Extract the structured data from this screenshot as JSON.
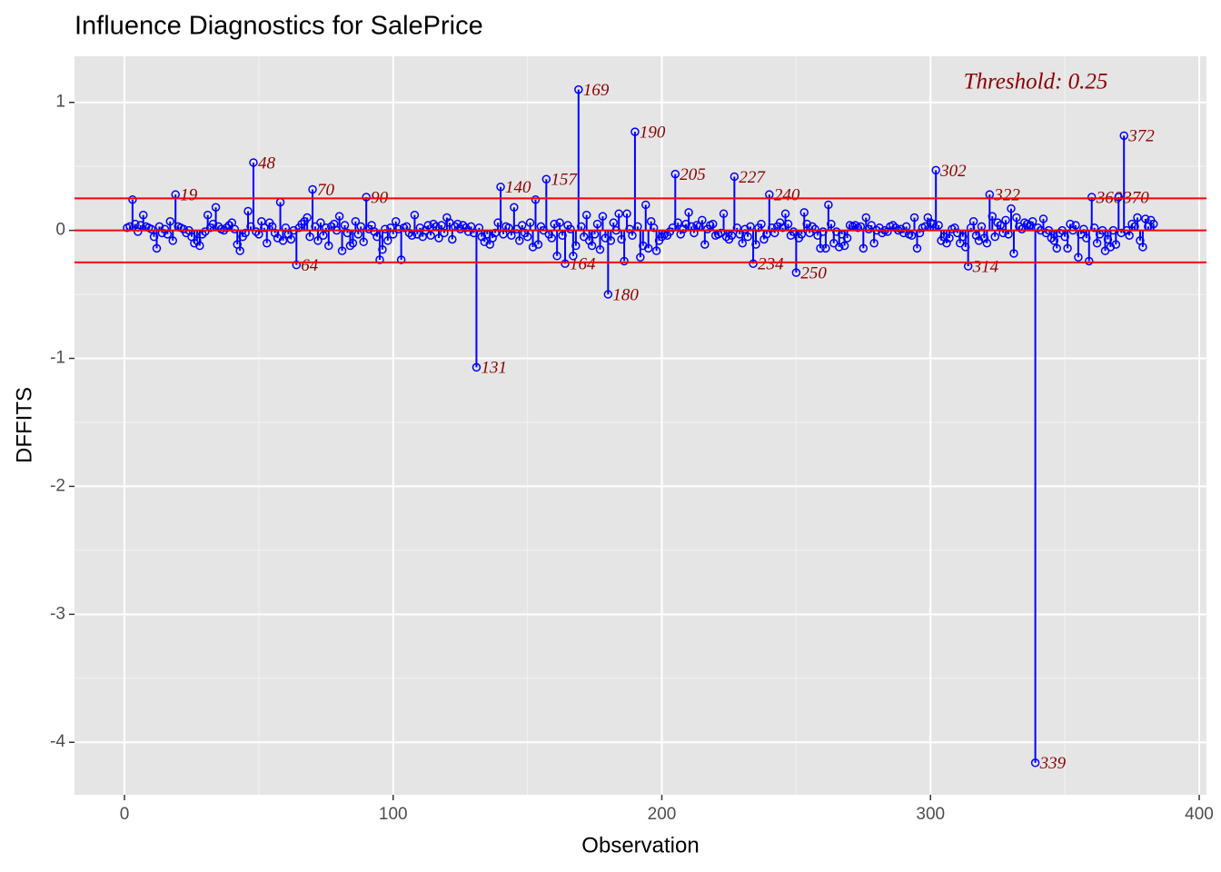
{
  "chart_data": {
    "type": "lollipop",
    "title": "Influence Diagnostics for SalePrice",
    "x_label": "Observation",
    "y_label": "DFFITS",
    "annotation": "Threshold: 0.25",
    "threshold": 0.25,
    "color": "#0000ff",
    "threshold_color": "#ff0000",
    "label_color": "#8b0000",
    "xlim": [
      -18.6,
      402.7
    ],
    "ylim": [
      -4.41,
      1.36
    ],
    "xticks": [
      0,
      100,
      200,
      300,
      400
    ],
    "yticks": [
      -4,
      -3,
      -2,
      -1,
      0,
      1
    ],
    "xminor": [
      50,
      150,
      250,
      350
    ],
    "yminor": [
      -3.5,
      -2.5,
      -1.5,
      -0.5,
      0.5
    ],
    "grid": true,
    "x": [
      1,
      2,
      3,
      4,
      5,
      6,
      7,
      8,
      9,
      10,
      11,
      12,
      13,
      14,
      15,
      16,
      17,
      18,
      19,
      20,
      21,
      22,
      23,
      24,
      25,
      26,
      27,
      28,
      29,
      30,
      31,
      32,
      33,
      34,
      35,
      36,
      37,
      38,
      39,
      40,
      41,
      42,
      43,
      44,
      45,
      46,
      47,
      48,
      49,
      50,
      51,
      52,
      53,
      54,
      55,
      56,
      57,
      58,
      59,
      60,
      61,
      62,
      63,
      64,
      65,
      66,
      67,
      68,
      69,
      70,
      71,
      72,
      73,
      74,
      75,
      76,
      77,
      78,
      79,
      80,
      81,
      82,
      83,
      84,
      85,
      86,
      87,
      88,
      89,
      90,
      91,
      92,
      93,
      94,
      95,
      96,
      97,
      98,
      99,
      100,
      101,
      102,
      103,
      104,
      105,
      106,
      107,
      108,
      109,
      110,
      111,
      112,
      113,
      114,
      115,
      116,
      117,
      118,
      119,
      120,
      121,
      122,
      123,
      124,
      125,
      126,
      127,
      128,
      129,
      130,
      131,
      132,
      133,
      134,
      135,
      136,
      137,
      138,
      139,
      140,
      141,
      142,
      143,
      144,
      145,
      146,
      147,
      148,
      149,
      150,
      151,
      152,
      153,
      154,
      155,
      156,
      157,
      158,
      159,
      160,
      161,
      162,
      163,
      164,
      165,
      166,
      167,
      168,
      169,
      170,
      171,
      172,
      173,
      174,
      175,
      176,
      177,
      178,
      179,
      180,
      181,
      182,
      183,
      184,
      185,
      186,
      187,
      188,
      189,
      190,
      191,
      192,
      193,
      194,
      195,
      196,
      197,
      198,
      199,
      200,
      201,
      202,
      203,
      204,
      205,
      206,
      207,
      208,
      209,
      210,
      211,
      212,
      213,
      214,
      215,
      216,
      217,
      218,
      219,
      220,
      221,
      222,
      223,
      224,
      225,
      226,
      227,
      228,
      229,
      230,
      231,
      232,
      233,
      234,
      235,
      236,
      237,
      238,
      239,
      240,
      241,
      242,
      243,
      244,
      245,
      246,
      247,
      248,
      249,
      250,
      251,
      252,
      253,
      254,
      255,
      256,
      257,
      258,
      259,
      260,
      261,
      262,
      263,
      264,
      265,
      266,
      267,
      268,
      269,
      270,
      271,
      272,
      273,
      274,
      275,
      276,
      277,
      278,
      279,
      280,
      281,
      282,
      283,
      284,
      285,
      286,
      287,
      288,
      289,
      290,
      291,
      292,
      293,
      294,
      295,
      296,
      297,
      298,
      299,
      300,
      301,
      302,
      303,
      304,
      305,
      306,
      307,
      308,
      309,
      310,
      311,
      312,
      313,
      314,
      315,
      316,
      317,
      318,
      319,
      320,
      321,
      322,
      323,
      324,
      325,
      326,
      327,
      328,
      329,
      330,
      331,
      332,
      333,
      334,
      335,
      336,
      337,
      338,
      339,
      340,
      341,
      342,
      343,
      344,
      345,
      346,
      347,
      348,
      349,
      350,
      351,
      352,
      353,
      354,
      355,
      356,
      357,
      358,
      359,
      360,
      361,
      362,
      363,
      364,
      365,
      366,
      367,
      368,
      369,
      370,
      371,
      372,
      373,
      374,
      375,
      376,
      377,
      378,
      379,
      380,
      381,
      382,
      383
    ],
    "values": [
      0.02,
      0.03,
      0.24,
      0.05,
      -0.01,
      0.04,
      0.12,
      0.03,
      0.02,
      0.01,
      -0.05,
      -0.14,
      0.03,
      -0.02,
      0.01,
      -0.03,
      0.07,
      -0.08,
      0.28,
      0.03,
      0.02,
      0.01,
      -0.02,
      0,
      -0.05,
      -0.1,
      -0.08,
      -0.12,
      -0.03,
      -0.01,
      0.12,
      0.02,
      0.05,
      0.18,
      0.03,
      0.01,
      0,
      0.02,
      0.04,
      0.06,
      0.01,
      -0.11,
      -0.16,
      -0.05,
      -0.02,
      0.15,
      0.03,
      0.53,
      -0.01,
      -0.03,
      0.07,
      0.02,
      -0.1,
      0.06,
      0.03,
      -0.02,
      -0.06,
      0.22,
      -0.08,
      0.02,
      -0.03,
      -0.07,
      0,
      -0.27,
      0.02,
      0.05,
      0.07,
      0.1,
      -0.05,
      0.32,
      0.03,
      -0.08,
      0.06,
      -0.04,
      0.02,
      -0.12,
      0.03,
      0.05,
      0,
      0.11,
      -0.16,
      0.04,
      -0.02,
      -0.12,
      -0.1,
      0.07,
      -0.03,
      0.03,
      -0.09,
      0.26,
      0.01,
      0.04,
      -0.01,
      -0.05,
      -0.23,
      -0.15,
      0.01,
      -0.08,
      0.02,
      -0.03,
      0.07,
      0.01,
      -0.23,
      0.02,
      0.03,
      -0.02,
      -0.04,
      0.12,
      -0.03,
      0.02,
      -0.05,
      0,
      0.04,
      -0.04,
      0.05,
      0.03,
      -0.06,
      0.04,
      -0.02,
      0.1,
      0.06,
      -0.07,
      0.03,
      0.05,
      0.01,
      0.04,
      0.02,
      -0.01,
      0.03,
      -0.02,
      -1.07,
      0.02,
      -0.05,
      -0.09,
      -0.03,
      -0.11,
      -0.06,
      -0.02,
      0.06,
      0.34,
      -0.03,
      0.03,
      0.02,
      -0.04,
      0.18,
      0.01,
      -0.08,
      0.04,
      -0.02,
      -0.05,
      0.06,
      -0.13,
      0.24,
      -0.11,
      0.03,
      0,
      0.4,
      -0.03,
      -0.06,
      0.05,
      -0.2,
      0.06,
      -0.04,
      -0.26,
      0.04,
      0.01,
      -0.2,
      -0.12,
      1.1,
      0.03,
      -0.05,
      0.12,
      -0.08,
      -0.12,
      -0.03,
      0.05,
      -0.15,
      0.11,
      -0.06,
      -0.5,
      -0.08,
      0.06,
      0,
      0.13,
      -0.07,
      -0.24,
      0.13,
      0.01,
      -0.04,
      0.77,
      0.03,
      -0.21,
      -0.12,
      0.2,
      -0.14,
      0.07,
      0.02,
      -0.16,
      -0.08,
      -0.05,
      -0.03,
      -0.04,
      -0.01,
      0.02,
      0.44,
      0.06,
      -0.03,
      0.01,
      0.05,
      0.14,
      0.03,
      -0.02,
      0.04,
      0.03,
      0.08,
      -0.11,
      0.01,
      0.04,
      0.05,
      -0.04,
      -0.03,
      -0.02,
      0.13,
      -0.05,
      -0.07,
      -0.04,
      0.42,
      0.02,
      -0.03,
      -0.1,
      0.01,
      -0.05,
      0.03,
      -0.26,
      -0.11,
      0.02,
      0.05,
      -0.07,
      -0.03,
      0.28,
      0.02,
      -0.02,
      0.03,
      0.06,
      0.02,
      0.13,
      0.05,
      -0.04,
      -0.01,
      -0.33,
      -0.06,
      -0.03,
      0.14,
      0.05,
      -0.02,
      0.03,
      0.01,
      -0.04,
      -0.14,
      -0.01,
      -0.14,
      0.2,
      0.05,
      -0.1,
      -0.01,
      -0.13,
      -0.03,
      -0.12,
      -0.06,
      0.04,
      0.03,
      0.04,
      0.02,
      0.03,
      -0.14,
      0.1,
      0.01,
      0.04,
      -0.1,
      0,
      0.02,
      -0.02,
      0,
      -0.01,
      0.03,
      0.04,
      0.02,
      0,
      0.01,
      -0.02,
      0.03,
      -0.03,
      -0.04,
      0.1,
      -0.14,
      -0.02,
      0.02,
      0.03,
      0.1,
      0.06,
      0.05,
      0.47,
      0.04,
      -0.08,
      -0.05,
      -0.1,
      -0.06,
      0.01,
      0.02,
      -0.02,
      -0.1,
      -0.05,
      -0.13,
      -0.28,
      0.02,
      0.07,
      -0.04,
      -0.08,
      0.03,
      -0.06,
      -0.1,
      0.28,
      0.11,
      -0.05,
      0.06,
      0.04,
      -0.02,
      0.08,
      -0.03,
      0.17,
      -0.18,
      0.1,
      0.03,
      0.01,
      0.06,
      0.05,
      0.04,
      0.07,
      -4.16,
      0.02,
      0,
      0.09,
      -0.02,
      0,
      -0.06,
      -0.08,
      -0.14,
      -0.02,
      0,
      -0.05,
      -0.14,
      0.05,
      0,
      0.04,
      -0.21,
      -0.03,
      0.01,
      -0.06,
      -0.24,
      0.26,
      0.02,
      -0.1,
      -0.03,
      0,
      -0.16,
      -0.07,
      -0.13,
      0,
      -0.11,
      0.26,
      -0.02,
      0.74,
      0,
      -0.04,
      0.05,
      0.03,
      0.1,
      -0.08,
      -0.13,
      0.09,
      0.03,
      0.08,
      0.05
    ]
  }
}
